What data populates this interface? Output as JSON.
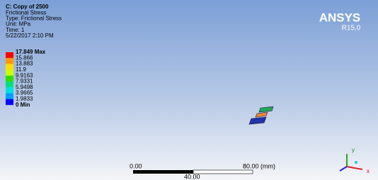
{
  "header": {
    "lines": [
      "C: Copy of 2500",
      "Frictional Stress",
      "Type: Frictional Stress",
      "Unit: MPa",
      "Time: 1",
      "5/22/2017 2:10 PM"
    ]
  },
  "legend": {
    "labels": [
      "17.849 Max",
      "15.866",
      "13.883",
      "11.9",
      "9.9163",
      "7.9331",
      "5.9498",
      "3.9665",
      "1.9833",
      "0 Min"
    ],
    "band_colors": [
      "#ff0000",
      "#ff9900",
      "#ffdd00",
      "#ccff00",
      "#33dd00",
      "#00e080",
      "#00e0e0",
      "#00a0ff",
      "#0000ff"
    ]
  },
  "logo": {
    "name": "ANSYS",
    "version": "R15.0"
  },
  "scale_bar": {
    "start": "0.00",
    "end": "80.00 (mm)",
    "middle": "40.00"
  },
  "triad": {
    "y": "y",
    "x": "x"
  }
}
